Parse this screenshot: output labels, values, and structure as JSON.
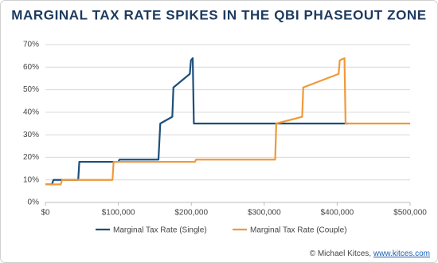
{
  "chart_data": {
    "type": "line",
    "title": "MARGINAL TAX RATE SPIKES IN THE QBI PHASEOUT ZONE",
    "xlim": [
      0,
      500000
    ],
    "ylim": [
      0,
      70
    ],
    "xticks": [
      {
        "value": 0,
        "label": "$0"
      },
      {
        "value": 100000,
        "label": "$100,000"
      },
      {
        "value": 200000,
        "label": "$200,000"
      },
      {
        "value": 300000,
        "label": "$300,000"
      },
      {
        "value": 400000,
        "label": "$400,000"
      },
      {
        "value": 500000,
        "label": "$500,000"
      }
    ],
    "yticks": [
      {
        "value": 0,
        "label": "0%"
      },
      {
        "value": 10,
        "label": "10%"
      },
      {
        "value": 20,
        "label": "20%"
      },
      {
        "value": 30,
        "label": "30%"
      },
      {
        "value": 40,
        "label": "40%"
      },
      {
        "value": 50,
        "label": "50%"
      },
      {
        "value": 60,
        "label": "60%"
      },
      {
        "value": 70,
        "label": "70%"
      }
    ],
    "grid": true,
    "series": [
      {
        "name": "Marginal Tax Rate (Single)",
        "color": "#1d4f7c",
        "x": [
          0,
          9000,
          11000,
          45000,
          46500,
          100000,
          101500,
          155000,
          157500,
          174000,
          175500,
          198000,
          199500,
          202000,
          203500,
          415000
        ],
        "values": [
          8,
          8,
          10,
          10,
          18,
          18,
          19,
          19,
          35,
          38,
          51,
          57,
          63,
          64,
          35,
          35
        ]
      },
      {
        "name": "Marginal Tax Rate (Couple)",
        "color": "#f0993a",
        "x": [
          0,
          21000,
          23000,
          92000,
          93500,
          205000,
          206500,
          315000,
          316500,
          352000,
          353500,
          402000,
          403500,
          410000,
          411500,
          500000
        ],
        "values": [
          8,
          8,
          10,
          10,
          18,
          18,
          19,
          19,
          35,
          38,
          51,
          57,
          63,
          64,
          35,
          35
        ]
      }
    ],
    "credit": "© Michael Kitces,",
    "credit_link": "www.kitces.com"
  }
}
